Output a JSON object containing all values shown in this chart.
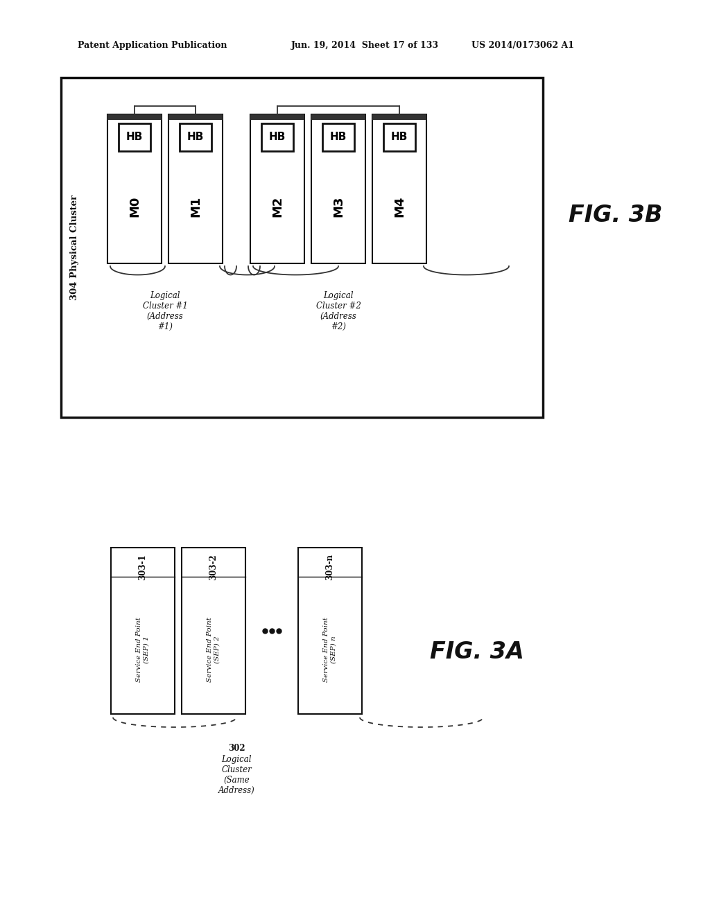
{
  "bg_color": "#ffffff",
  "header_left": "Patent Application Publication",
  "header_mid": "Jun. 19, 2014  Sheet 17 of 133",
  "header_right": "US 2014/0173062 A1",
  "fig3b_label": "FIG. 3B",
  "fig3a_label": "FIG. 3A",
  "fig3b_physical_cluster_label": "304 Physical Cluster",
  "fig3b_machines": [
    "M0",
    "M1",
    "M2",
    "M3",
    "M4"
  ],
  "fig3b_logical1_label": "Logical\nCluster #1\n(Address\n#1)",
  "fig3b_logical2_label": "Logical\nCluster #2\n(Address\n#2)",
  "fig3a_sep_boxes": [
    {
      "id": "303-1",
      "label": "Service End Point\n(SEP) 1"
    },
    {
      "id": "303-2",
      "label": "Service End Point\n(SEP) 2"
    },
    {
      "id": "303-n",
      "label": "Service End Point\n(SEP) n",
      "italic_n": true
    }
  ],
  "fig3a_logical_label_id": "302",
  "fig3a_logical_label_body": "Logical\nCluster\n(Same\nAddress)"
}
